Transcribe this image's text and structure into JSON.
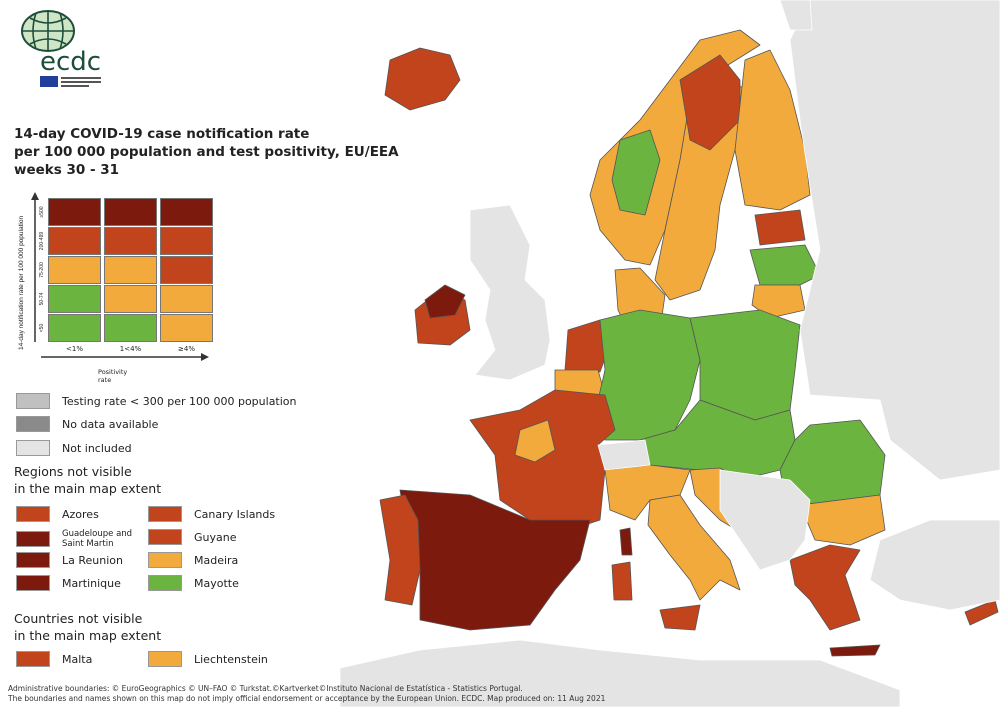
{
  "colors": {
    "dark_red": "#7c1a0e",
    "red": "#c1441c",
    "orange": "#f3aa3c",
    "green": "#6bb43f",
    "testing_low": "#c0c0c0",
    "no_data": "#8a8a8a",
    "not_included": "#e4e4e4",
    "sea": "#ffffff"
  },
  "logo": {
    "text": "ecdc",
    "subtitle": "EUROPEAN CENTRE FOR DISEASE PREVENTION AND CONTROL"
  },
  "title": {
    "line1": "14-day COVID-19 case notification rate",
    "line2": "per 100 000 population and test positivity, EU/EEA",
    "line3": "weeks 30 - 31"
  },
  "matrix": {
    "y_label": "14-day notification rate per 100 000 population",
    "x_label": "Positivity rate",
    "columns": [
      "<1%",
      "1<4%",
      "≥4%"
    ],
    "rows": [
      {
        "label": "≥500",
        "cells": [
          "dark_red",
          "dark_red",
          "dark_red"
        ]
      },
      {
        "label": "200-499",
        "cells": [
          "red",
          "red",
          "red"
        ]
      },
      {
        "label": "75-200",
        "cells": [
          "orange",
          "orange",
          "red"
        ]
      },
      {
        "label": "50-74",
        "cells": [
          "green",
          "orange",
          "orange"
        ]
      },
      {
        "label": "<50",
        "cells": [
          "green",
          "green",
          "orange"
        ]
      }
    ]
  },
  "legend": {
    "testing": "Testing rate < 300 per 100 000 population",
    "no_data": "No data available",
    "not_included": "Not included"
  },
  "regions_heading": {
    "line1": "Regions not visible",
    "line2": "in the main map extent"
  },
  "regions": [
    {
      "label": "Azores",
      "category": "red"
    },
    {
      "label": "Canary Islands",
      "category": "red"
    },
    {
      "label": "Guadeloupe and Saint Martin",
      "category": "dark_red"
    },
    {
      "label": "Guyane",
      "category": "red"
    },
    {
      "label": "La Reunion",
      "category": "dark_red"
    },
    {
      "label": "Madeira",
      "category": "orange"
    },
    {
      "label": "Martinique",
      "category": "dark_red"
    },
    {
      "label": "Mayotte",
      "category": "green"
    }
  ],
  "countries_heading": {
    "line1": "Countries not visible",
    "line2": "in the main map extent"
  },
  "countries": [
    {
      "label": "Malta",
      "category": "red"
    },
    {
      "label": "Liechtenstein",
      "category": "orange"
    }
  ],
  "map_regions": [
    {
      "id": "iceland",
      "category": "red"
    },
    {
      "id": "ireland",
      "category": "red"
    },
    {
      "id": "northern-ireland",
      "category": "dark_red"
    },
    {
      "id": "uk",
      "category": "not_included"
    },
    {
      "id": "norway",
      "category": "orange"
    },
    {
      "id": "norway-central",
      "category": "green"
    },
    {
      "id": "sweden",
      "category": "orange"
    },
    {
      "id": "sweden-north",
      "category": "red"
    },
    {
      "id": "finland",
      "category": "orange"
    },
    {
      "id": "estonia",
      "category": "red"
    },
    {
      "id": "latvia",
      "category": "green"
    },
    {
      "id": "lithuania",
      "category": "orange"
    },
    {
      "id": "denmark",
      "category": "orange"
    },
    {
      "id": "netherlands",
      "category": "red"
    },
    {
      "id": "belgium",
      "category": "orange"
    },
    {
      "id": "germany",
      "category": "green"
    },
    {
      "id": "poland",
      "category": "green"
    },
    {
      "id": "czechia-austria-slovakia-hungary",
      "category": "green"
    },
    {
      "id": "romania",
      "category": "green"
    },
    {
      "id": "bulgaria",
      "category": "orange"
    },
    {
      "id": "france",
      "category": "red"
    },
    {
      "id": "france-centre",
      "category": "orange"
    },
    {
      "id": "spain",
      "category": "dark_red"
    },
    {
      "id": "portugal",
      "category": "red"
    },
    {
      "id": "italy-north",
      "category": "orange"
    },
    {
      "id": "italy-south",
      "category": "orange"
    },
    {
      "id": "sicily",
      "category": "red"
    },
    {
      "id": "sardinia",
      "category": "red"
    },
    {
      "id": "corsica",
      "category": "dark_red"
    },
    {
      "id": "switzerland",
      "category": "not_included"
    },
    {
      "id": "slovenia-croatia",
      "category": "orange"
    },
    {
      "id": "greece",
      "category": "red"
    },
    {
      "id": "crete",
      "category": "dark_red"
    },
    {
      "id": "cyprus",
      "category": "red"
    },
    {
      "id": "balkans",
      "category": "not_included"
    },
    {
      "id": "east",
      "category": "not_included"
    },
    {
      "id": "turkey",
      "category": "not_included"
    },
    {
      "id": "north-africa",
      "category": "not_included"
    },
    {
      "id": "scandinavia-east",
      "category": "not_included"
    }
  ],
  "footer": {
    "line1": "Administrative boundaries: © EuroGeographics © UN–FAO © Turkstat.©Kartverket©Instituto Nacional de Estatística - Statistics Portugal.",
    "line2": "The boundaries and names shown on this map do not imply official endorsement or acceptance by the European Union. ECDC. Map produced on: 11 Aug 2021"
  }
}
